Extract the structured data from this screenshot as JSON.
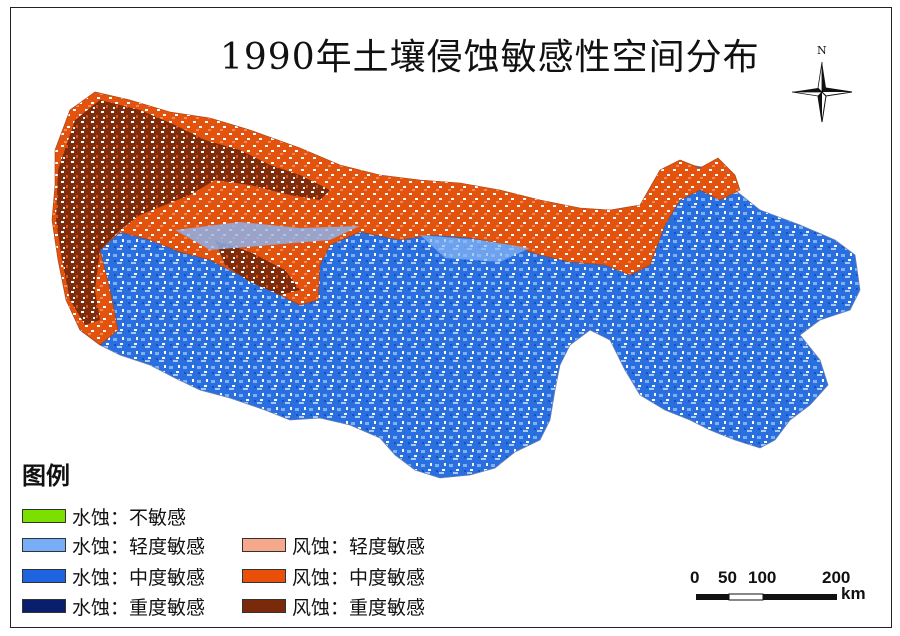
{
  "map": {
    "title": "1990年土壤侵蚀敏感性空间分布"
  },
  "north_arrow": {
    "label": "N"
  },
  "legend": {
    "title": "图例",
    "items": [
      {
        "label": "水蚀：不敏感",
        "color": "#7be000"
      },
      {
        "label": "水蚀：轻度敏感",
        "color": "#78aef6"
      },
      {
        "label": "风蚀：轻度敏感",
        "color": "#f5a88a"
      },
      {
        "label": "水蚀：中度敏感",
        "color": "#1e64e0"
      },
      {
        "label": "风蚀：中度敏感",
        "color": "#e8500a"
      },
      {
        "label": "水蚀：重度敏感",
        "color": "#0a1e6e"
      },
      {
        "label": "风蚀：重度敏感",
        "color": "#7a2a0a"
      }
    ]
  },
  "scale_bar": {
    "ticks": [
      "0",
      "50",
      "100",
      "200"
    ],
    "unit": "km"
  }
}
